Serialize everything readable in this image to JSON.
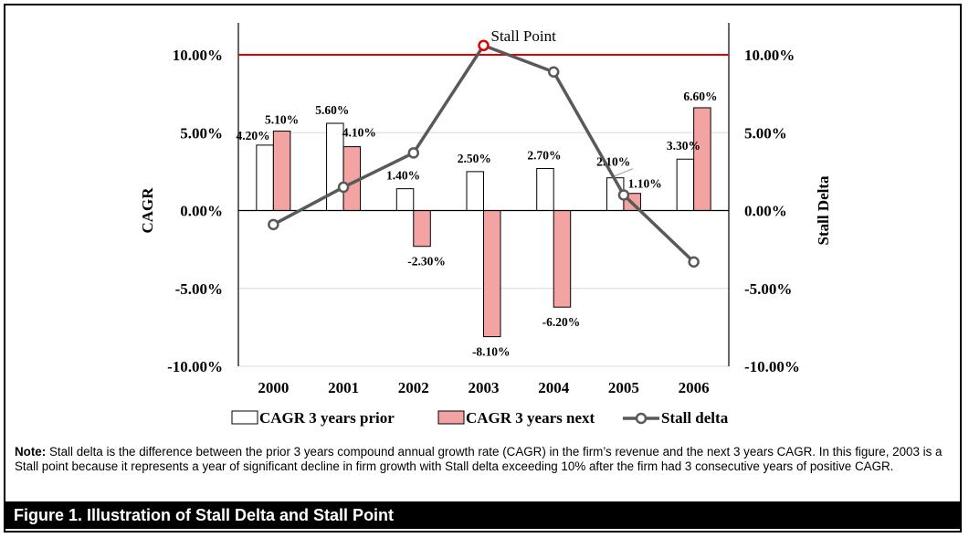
{
  "chart_data": {
    "type": "bar+line",
    "categories": [
      "2000",
      "2001",
      "2002",
      "2003",
      "2004",
      "2005",
      "2006"
    ],
    "series": [
      {
        "name": "CAGR 3 years prior",
        "kind": "bar",
        "axis": "left",
        "color": "#ffffff",
        "values": [
          4.2,
          5.6,
          1.4,
          2.5,
          2.7,
          2.1,
          3.3
        ],
        "labels": [
          "4.20%",
          "5.60%",
          "1.40%",
          "2.50%",
          "2.70%",
          "2.10%",
          "3.30%"
        ]
      },
      {
        "name": "CAGR 3 years next",
        "kind": "bar",
        "axis": "left",
        "color": "#f4a3a3",
        "values": [
          5.1,
          4.1,
          -2.3,
          -8.1,
          -6.2,
          1.1,
          6.6
        ],
        "labels": [
          "5.10%",
          "4.10%",
          "-2.30%",
          "-8.10%",
          "-6.20%",
          "1.10%",
          "6.60%"
        ]
      },
      {
        "name": "Stall delta",
        "kind": "line",
        "axis": "right",
        "color": "#595959",
        "values": [
          -0.9,
          1.5,
          3.7,
          10.6,
          8.9,
          1.0,
          -3.3
        ]
      }
    ],
    "ylabel": "CAGR",
    "y2label": "Stall Delta",
    "ylim": [
      -10,
      12
    ],
    "y2lim": [
      -10,
      12
    ],
    "yticks": [
      -10,
      -5,
      0,
      5,
      10
    ],
    "ytick_labels": [
      "-10.00%",
      "-5.00%",
      "0.00%",
      "5.00%",
      "10.00%"
    ],
    "threshold": {
      "value": 10,
      "color": "#e30000"
    },
    "annotation": {
      "text": "Stall Point",
      "category": "2003",
      "marker_color": "#e30000"
    },
    "legend_position": "bottom",
    "grid": true
  },
  "note": {
    "label": "Note:",
    "text": " Stall delta is the difference between the prior 3 years compound annual growth rate (CAGR) in the firm’s revenue and the next 3 years CAGR. In this figure, 2003 is a Stall point because it represents a year of significant decline in firm growth with Stall delta exceeding 10% after the firm had 3 consecutive years of positive CAGR."
  },
  "caption": "Figure 1. Illustration of Stall Delta and Stall Point"
}
